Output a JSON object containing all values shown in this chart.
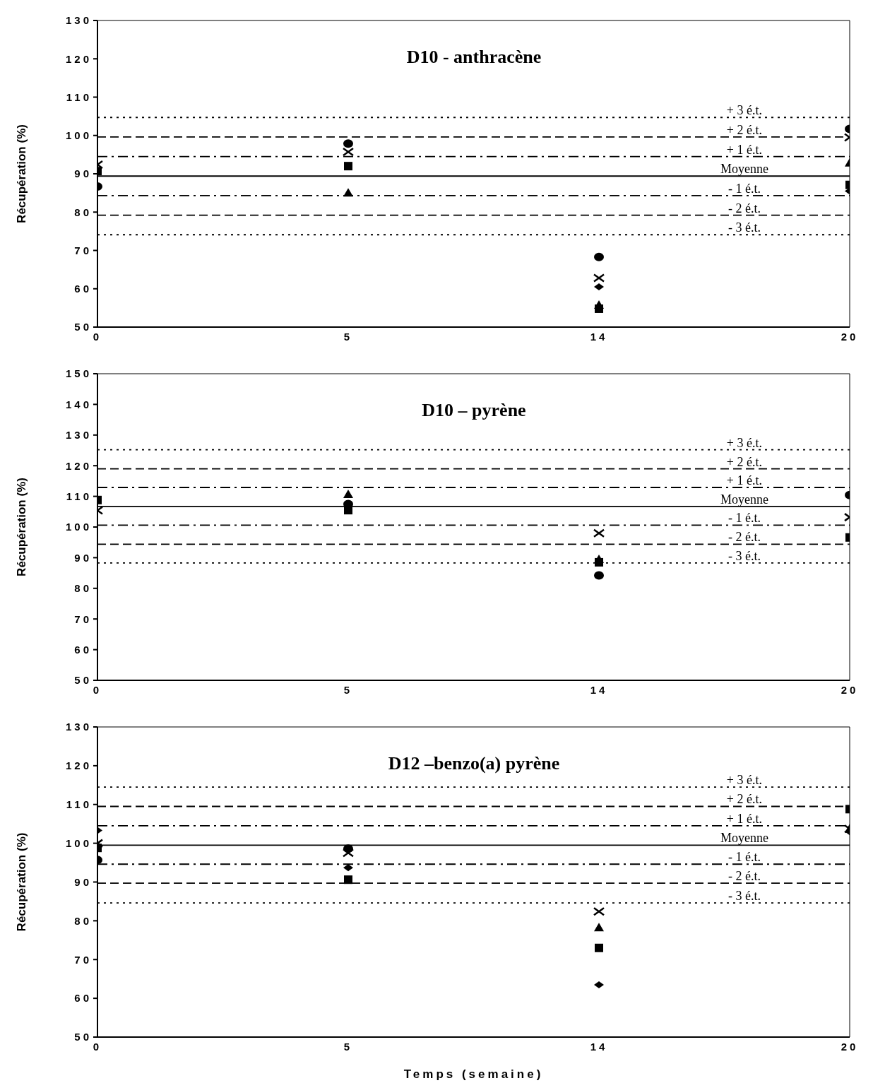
{
  "chart_data": [
    {
      "type": "scatter",
      "title": "D10 - anthracène",
      "ylabel": "Récupération (%)",
      "categories": [
        "0",
        "5",
        "14",
        "20"
      ],
      "series": [
        {
          "color": "#000000",
          "marker": "diamond",
          "values": [
            null,
            null,
            60.5,
            85.5
          ]
        },
        {
          "color": "#000000",
          "marker": "square",
          "values": [
            90.7,
            92,
            54.8,
            87.1
          ]
        },
        {
          "color": "#000000",
          "marker": "triangle",
          "values": [
            null,
            85,
            55.7,
            92.8
          ]
        },
        {
          "color": "#000000",
          "marker": "cross",
          "values": [
            92.4,
            95.7,
            62.8,
            99.5
          ]
        },
        {
          "color": "#000000",
          "marker": "circle",
          "values": [
            86.7,
            97.9,
            68.3,
            101.7
          ]
        }
      ],
      "ylim": [
        50,
        130
      ],
      "yticks": [
        50,
        60,
        70,
        80,
        90,
        100,
        110,
        120,
        130
      ],
      "ref_lines": [
        {
          "axis": "y",
          "value": 104.7,
          "label": "+ 3 é.t.",
          "line_style": "dotted"
        },
        {
          "axis": "y",
          "value": 99.6,
          "label": "+ 2 é.t.",
          "line_style": "dashed"
        },
        {
          "axis": "y",
          "value": 94.5,
          "label": "+ 1 é.t.",
          "line_style": "dashdot"
        },
        {
          "axis": "y",
          "value": 89.4,
          "label": "Moyenne",
          "line_style": "solid"
        },
        {
          "axis": "y",
          "value": 84.3,
          "label": "- 1 é.t.",
          "line_style": "dashdot"
        },
        {
          "axis": "y",
          "value": 79.2,
          "label": "- 2 é.t.",
          "line_style": "dashed"
        },
        {
          "axis": "y",
          "value": 74.1,
          "label": "- 3 é.t.",
          "line_style": "dotted"
        }
      ]
    },
    {
      "type": "scatter",
      "title": "D10 – pyrène",
      "ylabel": "Récupération (%)",
      "categories": [
        "0",
        "5",
        "14",
        "20"
      ],
      "series": [
        {
          "color": "#000000",
          "marker": "square",
          "values": [
            108.8,
            105.5,
            88.5,
            96.6
          ]
        },
        {
          "color": "#000000",
          "marker": "triangle",
          "values": [
            null,
            110.6,
            89.4,
            null
          ]
        },
        {
          "color": "#000000",
          "marker": "cross",
          "values": [
            105.4,
            null,
            98,
            103.2
          ]
        },
        {
          "color": "#000000",
          "marker": "circle",
          "values": [
            null,
            107.5,
            84.2,
            110.4
          ]
        }
      ],
      "ylim": [
        50,
        150
      ],
      "yticks": [
        50,
        60,
        70,
        80,
        90,
        100,
        110,
        120,
        130,
        140,
        150
      ],
      "ref_lines": [
        {
          "axis": "y",
          "value": 125.2,
          "label": "+ 3 é.t.",
          "line_style": "dotted"
        },
        {
          "axis": "y",
          "value": 119,
          "label": "+ 2 é.t.",
          "line_style": "dashed"
        },
        {
          "axis": "y",
          "value": 112.9,
          "label": "+ 1 é.t.",
          "line_style": "dashdot"
        },
        {
          "axis": "y",
          "value": 106.7,
          "label": "Moyenne",
          "line_style": "solid"
        },
        {
          "axis": "y",
          "value": 100.6,
          "label": "- 1 é.t.",
          "line_style": "dashdot"
        },
        {
          "axis": "y",
          "value": 94.4,
          "label": "- 2 é.t.",
          "line_style": "dashed"
        },
        {
          "axis": "y",
          "value": 88.3,
          "label": "- 3 é.t.",
          "line_style": "dotted"
        }
      ]
    },
    {
      "type": "scatter",
      "title": "D12 –benzo(a) pyrène",
      "ylabel": "Récupération (%)",
      "xlabel": "Temps (semaine)",
      "categories": [
        "0",
        "5",
        "14",
        "20"
      ],
      "series": [
        {
          "color": "#000000",
          "marker": "diamond",
          "values": [
            103.3,
            93.7,
            63.5,
            103
          ]
        },
        {
          "color": "#000000",
          "marker": "square",
          "values": [
            98.8,
            90.6,
            73,
            108.8
          ]
        },
        {
          "color": "#000000",
          "marker": "triangle",
          "values": [
            null,
            null,
            78.2,
            103.7
          ]
        },
        {
          "color": "#000000",
          "marker": "cross",
          "values": [
            100,
            97.5,
            82.4,
            103.7
          ]
        },
        {
          "color": "#000000",
          "marker": "circle",
          "values": [
            95.7,
            98.6,
            null,
            null
          ]
        }
      ],
      "ylim": [
        50,
        130
      ],
      "yticks": [
        50,
        60,
        70,
        80,
        90,
        100,
        110,
        120,
        130
      ],
      "ref_lines": [
        {
          "axis": "y",
          "value": 114.5,
          "label": "+ 3 é.t.",
          "line_style": "dotted"
        },
        {
          "axis": "y",
          "value": 109.5,
          "label": "+ 2 é.t.",
          "line_style": "dashed"
        },
        {
          "axis": "y",
          "value": 104.5,
          "label": "+ 1 é.t.",
          "line_style": "dashdot"
        },
        {
          "axis": "y",
          "value": 99.5,
          "label": "Moyenne",
          "line_style": "solid"
        },
        {
          "axis": "y",
          "value": 94.6,
          "label": "- 1 é.t.",
          "line_style": "dashdot"
        },
        {
          "axis": "y",
          "value": 89.7,
          "label": "- 2 é.t.",
          "line_style": "dashed"
        },
        {
          "axis": "y",
          "value": 84.6,
          "label": "- 3 é.t.",
          "line_style": "dotted"
        }
      ]
    }
  ]
}
